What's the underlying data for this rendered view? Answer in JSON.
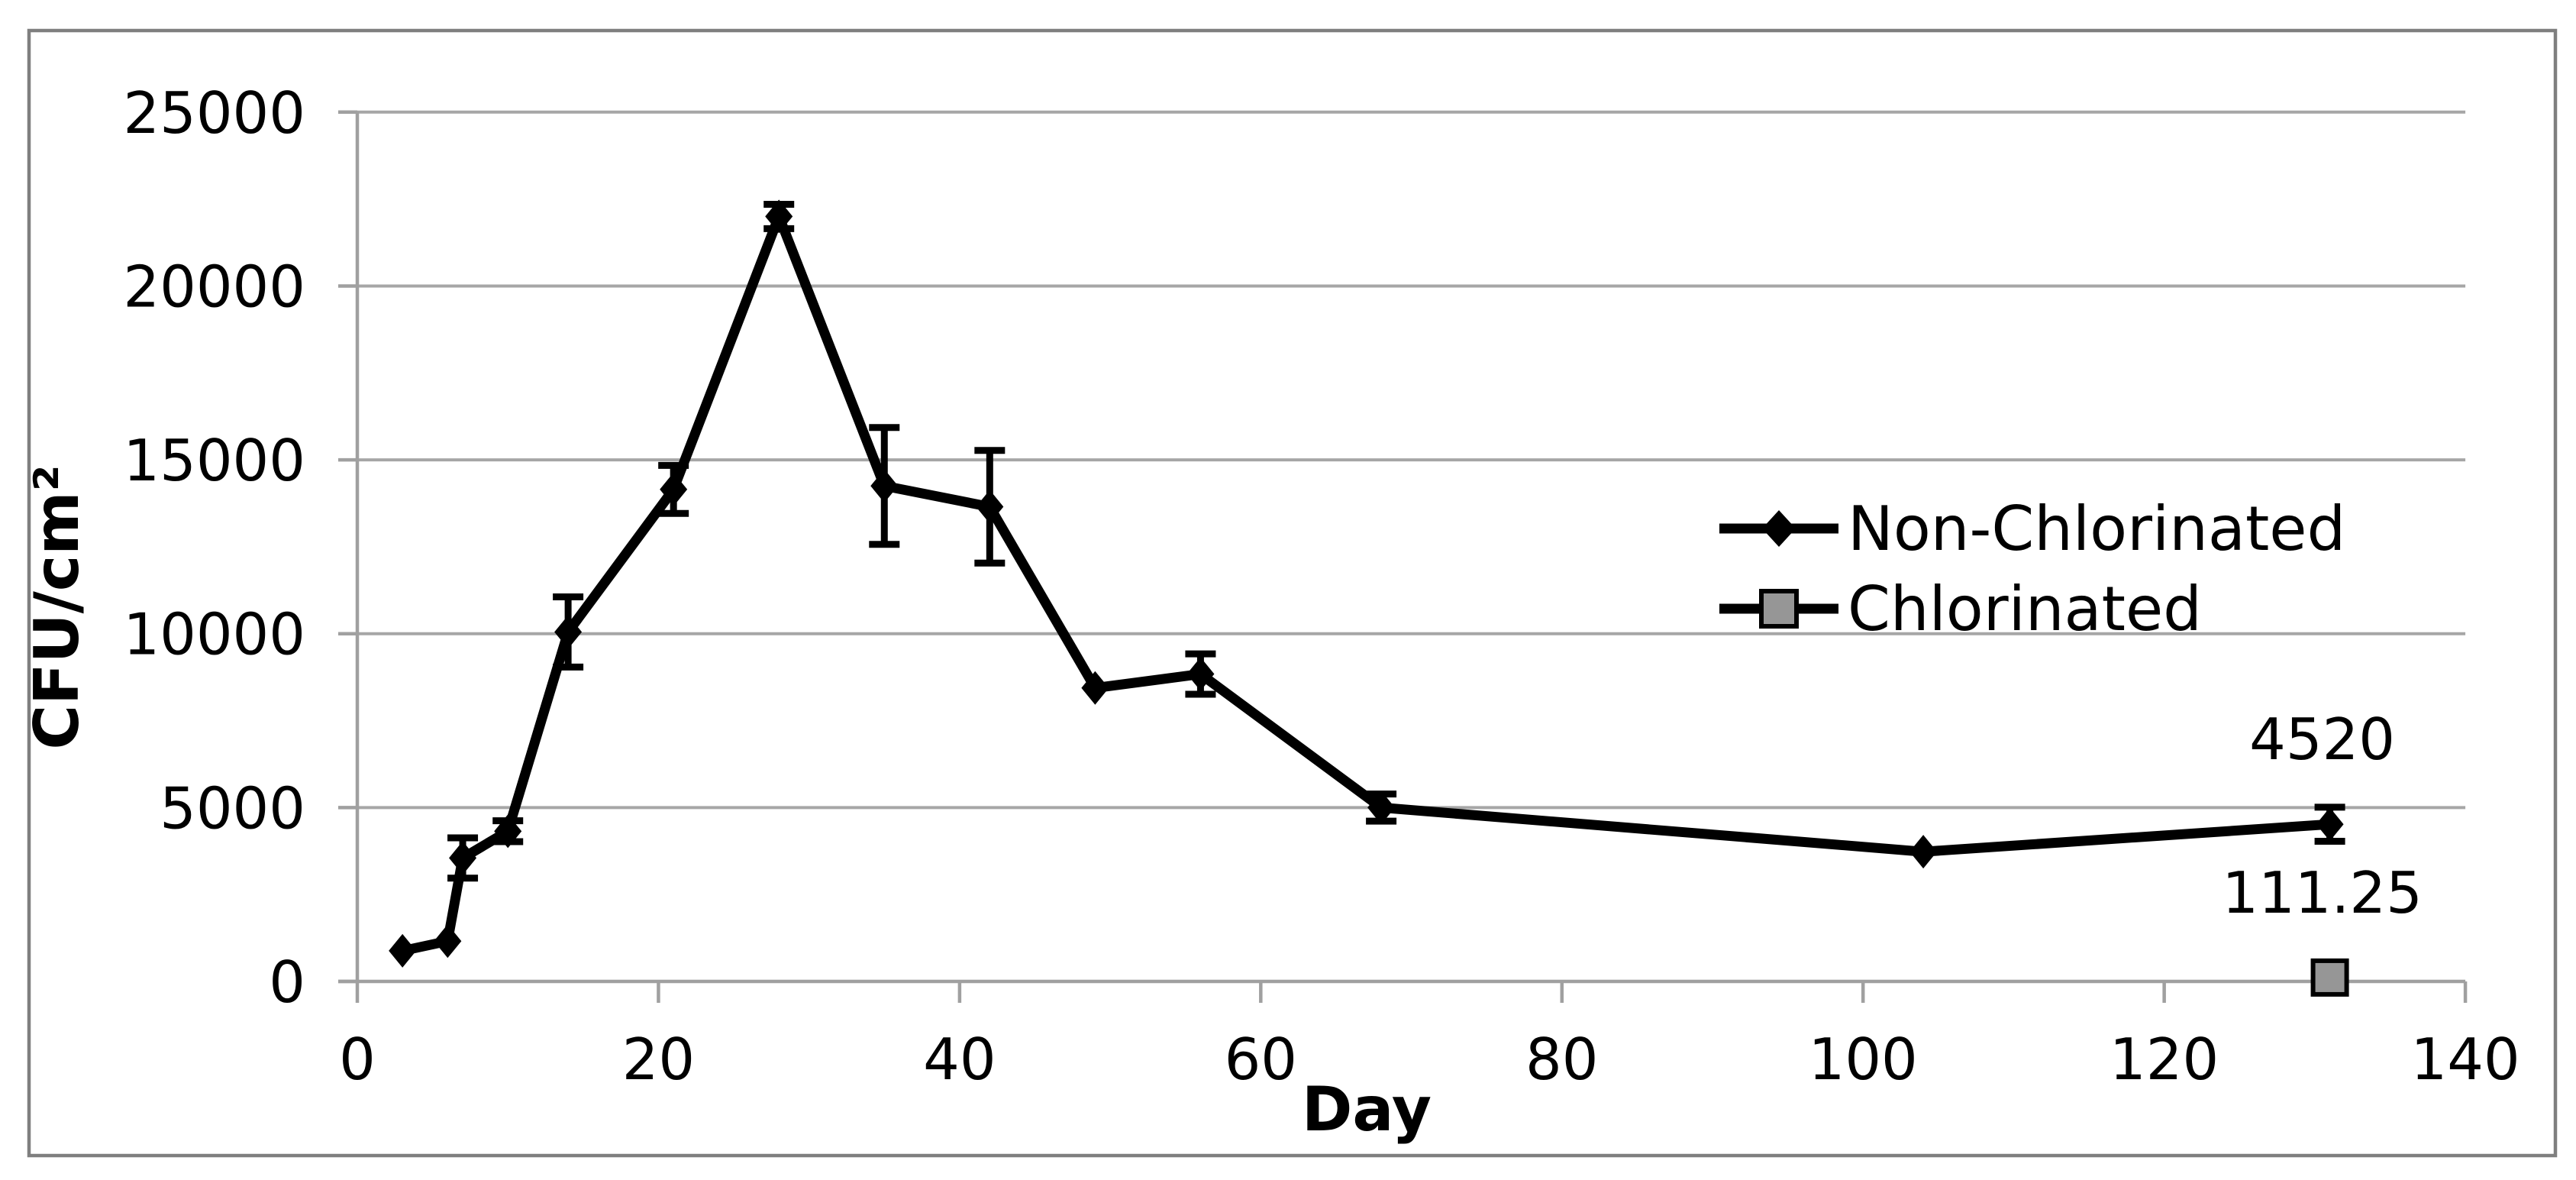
{
  "chart_data": {
    "type": "line",
    "title": "",
    "xlabel": "Day",
    "ylabel": "CFU/cm²",
    "xlim": [
      0,
      140
    ],
    "ylim": [
      0,
      25000
    ],
    "x_ticks": [
      0,
      20,
      40,
      60,
      80,
      100,
      120,
      140
    ],
    "y_ticks": [
      0,
      5000,
      10000,
      15000,
      20000,
      25000
    ],
    "grid": "horizontal-only",
    "legend_position": "inside-right",
    "colors": {
      "grid": "#A6A6A6",
      "axis": "#A0A0A0",
      "figure_border": "#7F7F7F",
      "series_line": "#000000",
      "square_fill": "#969696",
      "text": "#000000"
    },
    "series": [
      {
        "name": "Non-Chlorinated",
        "marker": "diamond",
        "color": "#000000",
        "points": [
          {
            "day": 3,
            "value": 880
          },
          {
            "day": 6,
            "value": 1160
          },
          {
            "day": 7,
            "value": 3550,
            "error": 580
          },
          {
            "day": 10,
            "value": 4320,
            "error": 300
          },
          {
            "day": 14,
            "value": 10050,
            "error": 1010
          },
          {
            "day": 21,
            "value": 14150,
            "error": 690
          },
          {
            "day": 28,
            "value": 22000,
            "error": 350
          },
          {
            "day": 35,
            "value": 14250,
            "error": 1680
          },
          {
            "day": 42,
            "value": 13650,
            "error": 1620
          },
          {
            "day": 49,
            "value": 8440
          },
          {
            "day": 56,
            "value": 8840,
            "error": 580
          },
          {
            "day": 68,
            "value": 5000,
            "error": 390
          },
          {
            "day": 104,
            "value": 3730
          },
          {
            "day": 131,
            "value": 4520,
            "error": 490,
            "label": "4520"
          }
        ]
      },
      {
        "name": "Chlorinated",
        "marker": "square",
        "color": "#969696",
        "points": [
          {
            "day": 131,
            "value": 111.25,
            "label": "111.25"
          }
        ]
      }
    ]
  }
}
